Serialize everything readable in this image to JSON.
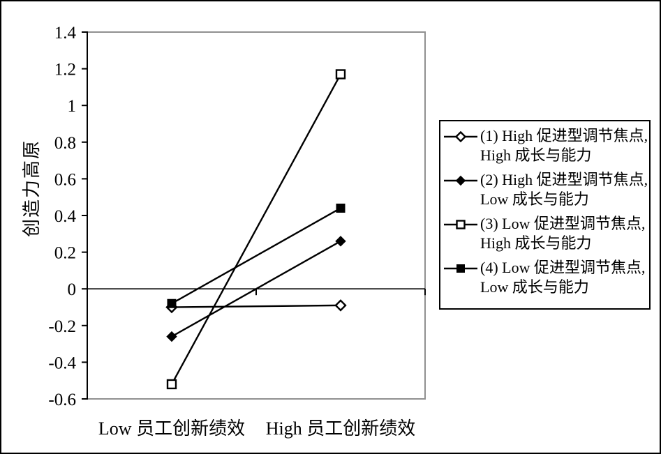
{
  "figure": {
    "background": "#ffffff",
    "frame_color": "#000000"
  },
  "chart_data": {
    "type": "line",
    "title": "",
    "xlabel": "",
    "ylabel": "创造力高原",
    "categories": [
      "Low 员工创新绩效",
      "High 员工创新绩效"
    ],
    "series": [
      {
        "name": "(1) High 促进型调节焦点, High 成长与能力",
        "marker": "diamond-open",
        "color": "#000000",
        "values": [
          -0.1,
          -0.09
        ]
      },
      {
        "name": "(2) High 促进型调节焦点, Low 成长与能力",
        "marker": "diamond-filled",
        "color": "#000000",
        "values": [
          -0.26,
          0.26
        ]
      },
      {
        "name": "(3) Low 促进型调节焦点, High 成长与能力",
        "marker": "square-open",
        "color": "#000000",
        "values": [
          -0.52,
          1.17
        ]
      },
      {
        "name": "(4) Low 促进型调节焦点, Low 成长与能力",
        "marker": "square-filled",
        "color": "#000000",
        "values": [
          -0.08,
          0.44
        ]
      }
    ],
    "ylim": [
      -0.6,
      1.4
    ],
    "yticks": [
      {
        "label": "1.4",
        "value": 1.4
      },
      {
        "label": "1.2",
        "value": 1.2
      },
      {
        "label": "1",
        "value": 1.0
      },
      {
        "label": "0.8",
        "value": 0.8
      },
      {
        "label": "0.6",
        "value": 0.6
      },
      {
        "label": "0.4",
        "value": 0.4
      },
      {
        "label": "0.2",
        "value": 0.2
      },
      {
        "label": "0",
        "value": 0.0
      },
      {
        "label": "-0.2",
        "value": -0.2
      },
      {
        "label": "-0.4",
        "value": -0.4
      },
      {
        "label": "-0.6",
        "value": -0.6
      }
    ],
    "grid": false,
    "legend_position": "right",
    "axis_color": "#000000",
    "plot_border_color": "#909090"
  },
  "legend": {
    "items": [
      {
        "marker": "diamond-open",
        "line1": "(1) High 促进型调节焦点,",
        "line2": "High 成长与能力"
      },
      {
        "marker": "diamond-filled",
        "line1": "(2) High 促进型调节焦点,",
        "line2": "Low 成长与能力"
      },
      {
        "marker": "square-open",
        "line1": "(3) Low 促进型调节焦点,",
        "line2": "High 成长与能力"
      },
      {
        "marker": "square-filled",
        "line1": "(4) Low 促进型调节焦点,",
        "line2": "Low 成长与能力"
      }
    ]
  }
}
